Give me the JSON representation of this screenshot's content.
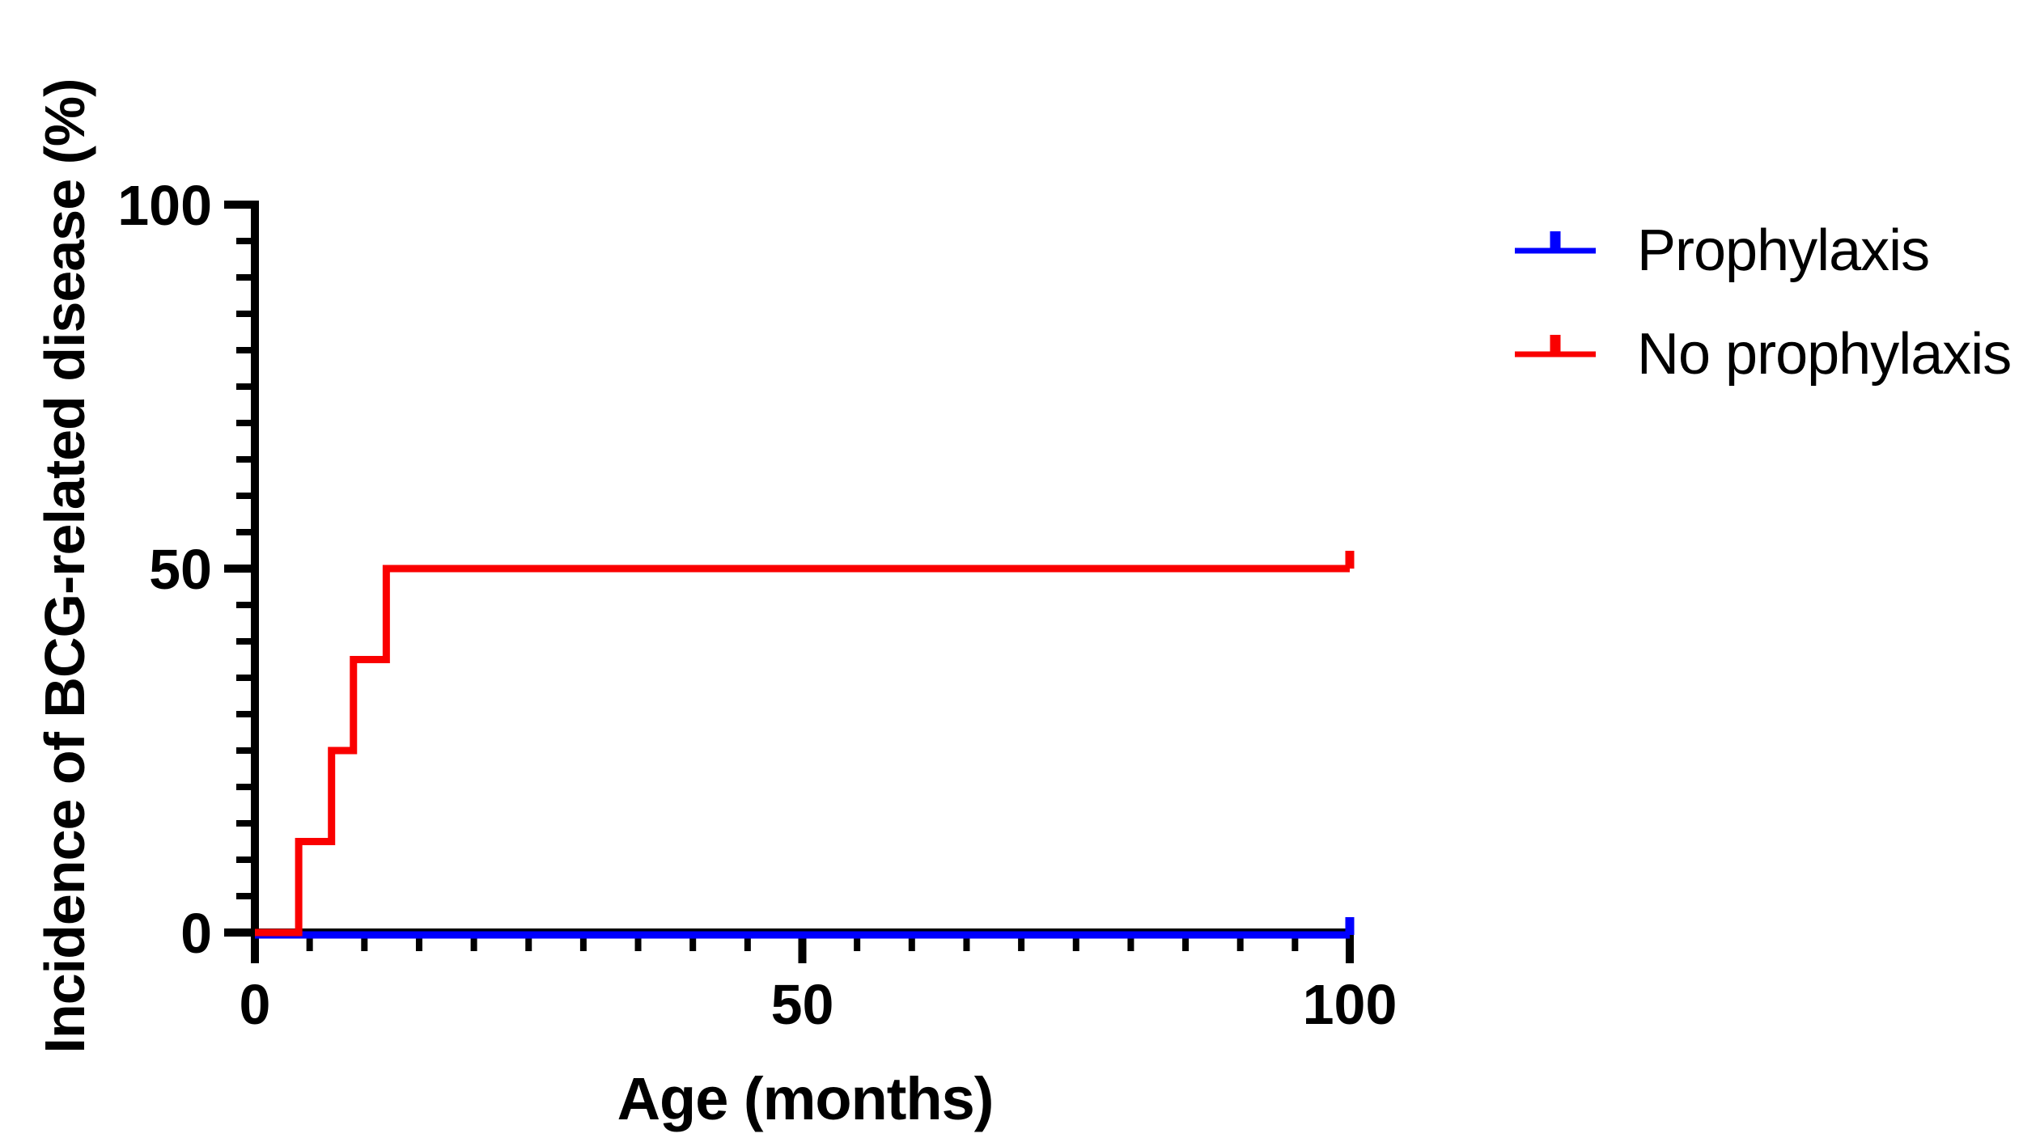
{
  "figure": {
    "background_color": "#ffffff",
    "axis_color": "#000000",
    "text_color": "#000000"
  },
  "chart_data": {
    "type": "line",
    "subtype": "kaplan-meier-step-incidence",
    "title": "",
    "xlabel": "Age (months)",
    "ylabel": "Incidence of BCG-related disease (%)",
    "xlim": [
      0,
      100
    ],
    "ylim": [
      0,
      100
    ],
    "x_major_ticks": [
      0,
      50,
      100
    ],
    "x_minor_step": 5,
    "y_major_ticks": [
      0,
      50,
      100
    ],
    "y_minor_step": 5,
    "grid": false,
    "legend_position": "right",
    "series": [
      {
        "name": "Prophylaxis",
        "color": "#0000fe",
        "step": true,
        "points": [
          [
            0,
            0
          ],
          [
            100,
            0
          ]
        ],
        "censor_marks": [
          [
            100,
            0
          ]
        ]
      },
      {
        "name": "No prophylaxis",
        "color": "#fa0000",
        "step": true,
        "points": [
          [
            0,
            0
          ],
          [
            4,
            0
          ],
          [
            4,
            12.5
          ],
          [
            7,
            12.5
          ],
          [
            7,
            25
          ],
          [
            9,
            25
          ],
          [
            9,
            37.5
          ],
          [
            12,
            37.5
          ],
          [
            12,
            50
          ],
          [
            100,
            50
          ]
        ],
        "censor_marks": [
          [
            100,
            50
          ]
        ]
      }
    ]
  }
}
